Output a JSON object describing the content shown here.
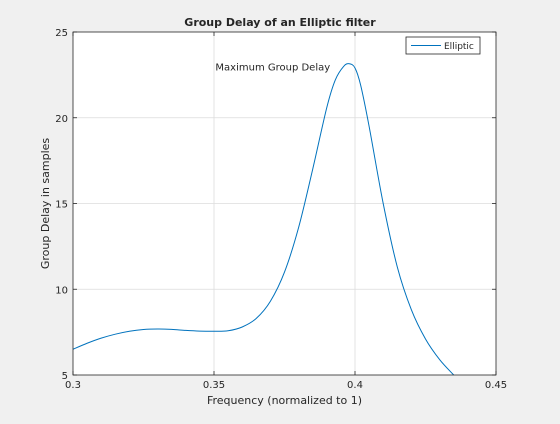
{
  "chart_data": {
    "type": "line",
    "title": "Group Delay of an Elliptic filter",
    "xlabel": "Frequency (normalized to 1)",
    "ylabel": "Group Delay in samples",
    "xlim": [
      0.3,
      0.45
    ],
    "ylim": [
      5,
      25
    ],
    "x_ticks": [
      0.3,
      0.35,
      0.4,
      0.45
    ],
    "x_tick_labels": [
      "0.3",
      "0.35",
      "0.4",
      "0.45"
    ],
    "y_ticks": [
      5,
      10,
      15,
      20,
      25
    ],
    "y_tick_labels": [
      "5",
      "10",
      "15",
      "20",
      "25"
    ],
    "grid": true,
    "legend_position": "top-right",
    "series": [
      {
        "name": "Elliptic",
        "color": "#0072bd",
        "x": [
          0.3,
          0.305,
          0.31,
          0.315,
          0.32,
          0.325,
          0.33,
          0.335,
          0.34,
          0.345,
          0.35,
          0.355,
          0.36,
          0.365,
          0.37,
          0.375,
          0.38,
          0.385,
          0.39,
          0.393,
          0.396,
          0.398,
          0.4,
          0.402,
          0.405,
          0.41,
          0.415,
          0.42,
          0.425,
          0.43,
          0.435
        ],
        "y": [
          6.5,
          6.85,
          7.15,
          7.38,
          7.55,
          7.65,
          7.68,
          7.66,
          7.6,
          7.56,
          7.55,
          7.58,
          7.8,
          8.3,
          9.3,
          11.0,
          13.6,
          17.0,
          20.6,
          22.2,
          23.0,
          23.15,
          22.9,
          21.9,
          19.5,
          15.0,
          11.3,
          8.8,
          7.1,
          5.9,
          5.0
        ]
      }
    ],
    "annotations": [
      {
        "text": "Maximum Group Delay",
        "x": 0.3505,
        "y": 22.75
      }
    ]
  }
}
